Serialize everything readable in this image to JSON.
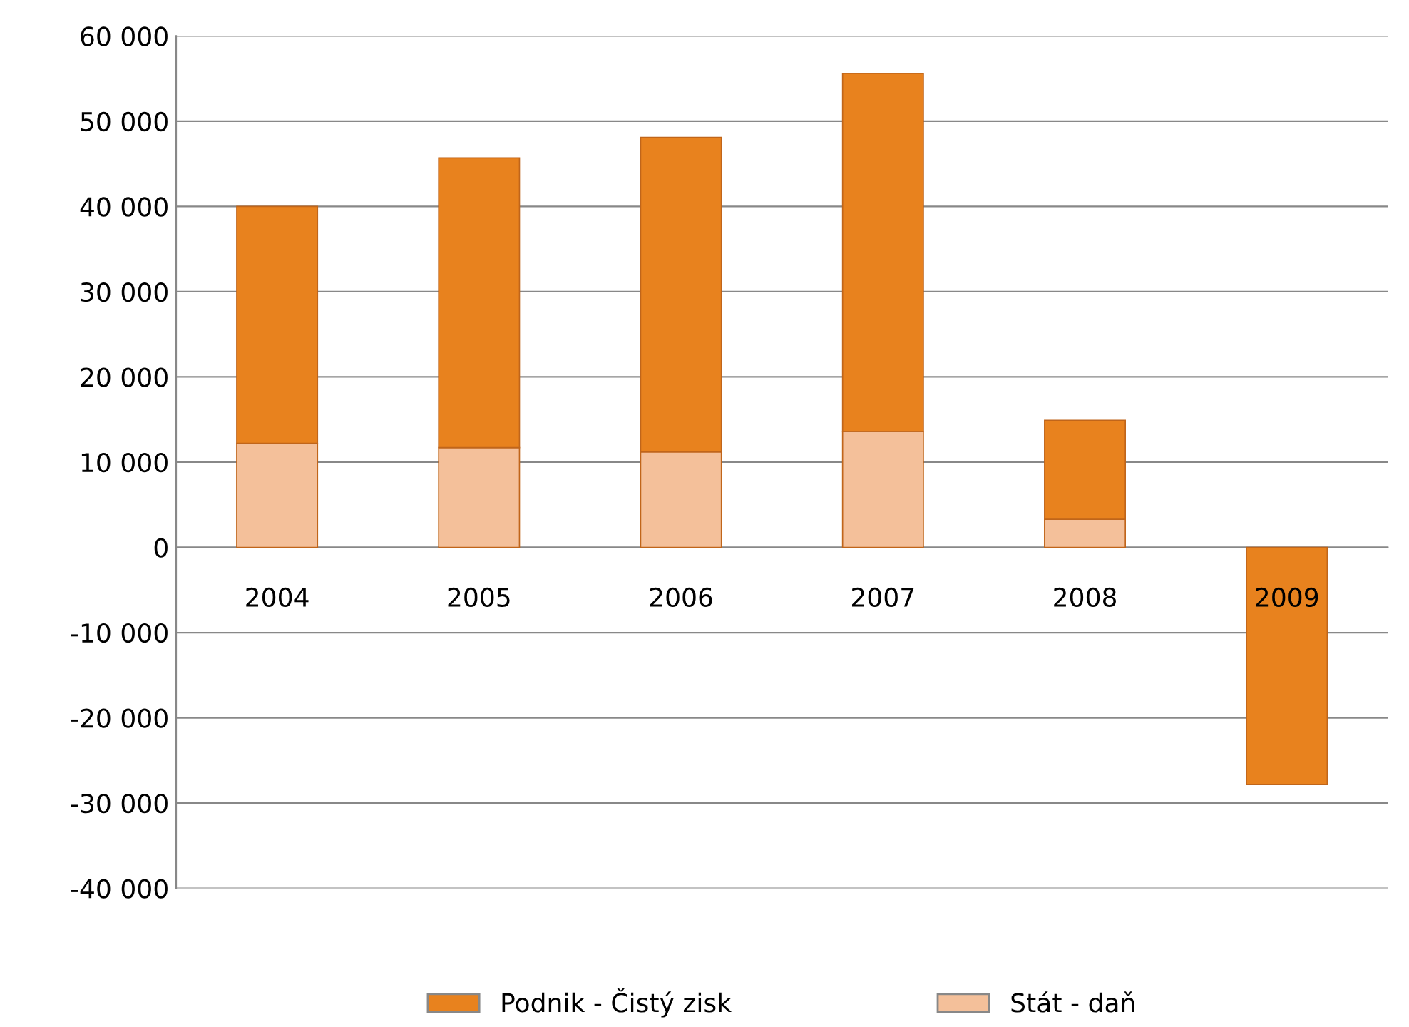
{
  "chart_data": {
    "type": "bar",
    "stacked": true,
    "categories": [
      "2004",
      "2005",
      "2006",
      "2007",
      "2008",
      "2009"
    ],
    "series": [
      {
        "name": "Stát - daň",
        "color": "#f4c09a",
        "values": [
          12200,
          11700,
          11200,
          13600,
          3300,
          null
        ]
      },
      {
        "name": "Podnik - Čistý zisk",
        "color": "#e8821e",
        "values": [
          27800,
          34000,
          36900,
          42000,
          11600,
          -27800
        ]
      }
    ],
    "ylim": [
      -40000,
      60000
    ],
    "yticks": [
      {
        "value": -40000,
        "label": "-40 000"
      },
      {
        "value": -30000,
        "label": "-30 000"
      },
      {
        "value": -20000,
        "label": "-20 000"
      },
      {
        "value": -10000,
        "label": "-10 000"
      },
      0,
      {
        "value": 10000,
        "label": "10 000"
      },
      {
        "value": 20000,
        "label": "20 000"
      },
      {
        "value": 30000,
        "label": "30 000"
      },
      {
        "value": 40000,
        "label": "40 000"
      },
      {
        "value": 50000,
        "label": "50 000"
      },
      {
        "value": 60000,
        "label": "60 000"
      }
    ],
    "grid": "y",
    "legend": "bottom"
  }
}
